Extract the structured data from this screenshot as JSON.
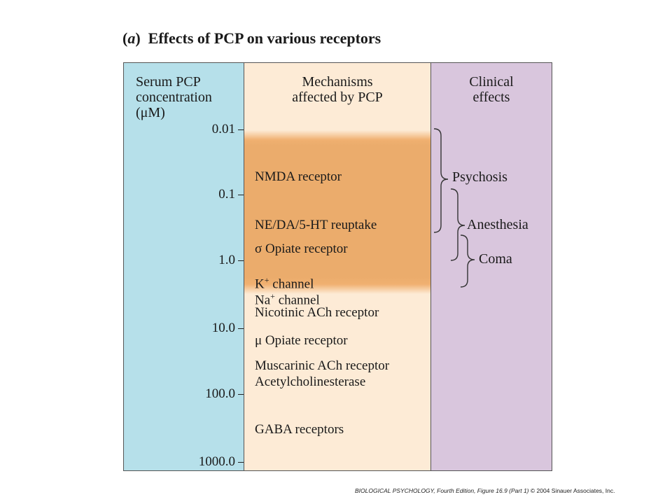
{
  "title": {
    "letter": "a",
    "text": "Effects of PCP on various receptors"
  },
  "columns": {
    "concentration": {
      "line1": "Serum PCP",
      "line2": "concentration",
      "line3": "(μM)"
    },
    "mechanisms": {
      "line1": "Mechanisms",
      "line2": "affected by PCP"
    },
    "clinical": {
      "line1": "Clinical",
      "line2": "effects"
    }
  },
  "scale": [
    "0.01",
    "0.1",
    "1.0",
    "10.0",
    "100.0",
    "1000.0"
  ],
  "mechanisms": [
    "NMDA receptor",
    "NE/DA/5-HT reuptake",
    "σ Opiate receptor",
    "K",
    "channel",
    "Na",
    "channel",
    "Nicotinic ACh receptor",
    "μ Opiate receptor",
    "Muscarinic ACh receptor",
    "Acetylcholinesterase",
    "GABA receptors"
  ],
  "superscript_plus": "+",
  "effects": [
    "Psychosis",
    "Anesthesia",
    "Coma"
  ],
  "footer": {
    "book": "BIOLOGICAL PSYCHOLOGY, Fourth Edition, Figure 16.9 (Part 1)",
    "credit": "© 2004 Sinauer Associates, Inc."
  },
  "colors": {
    "concentration_column": "#b6e0ea",
    "mechanisms_column": "#fdebd6",
    "highlight_band": "#ebac6c",
    "clinical_column": "#d9c6dd"
  }
}
